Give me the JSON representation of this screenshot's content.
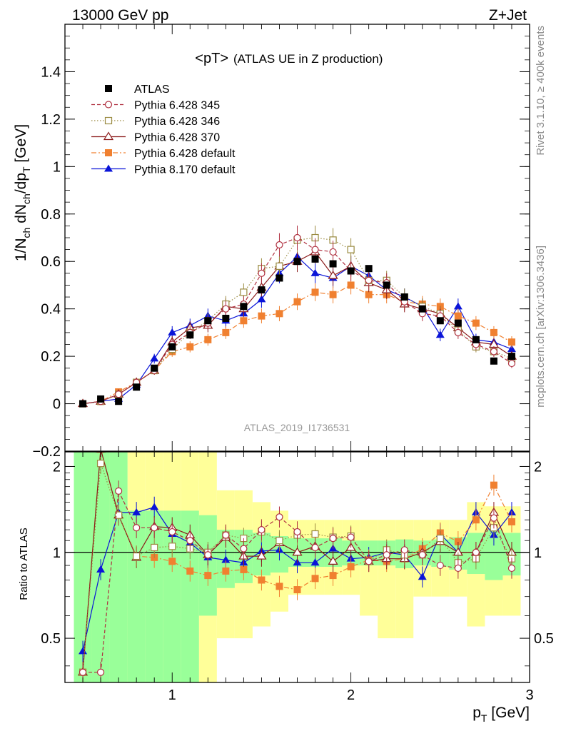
{
  "header": {
    "left": "13000 GeV pp",
    "right": "Z+Jet"
  },
  "side": {
    "rivet": "Rivet 3.1.10, ≥ 400k events",
    "mcplots": "mcplots.cern.ch [arXiv:1306.3436]"
  },
  "chart_data": [
    {
      "type": "line",
      "title": "<pT>",
      "subtitle": "(ATLAS UE in Z production)",
      "analysis_label": "ATLAS_2019_I1736531",
      "ylabel": "1/N_ch dN_ch/dp_T [GeV]",
      "xlabel": "p_T [GeV]",
      "xlim": [
        0.4,
        3.0
      ],
      "ylim": [
        -0.2,
        1.6
      ],
      "yticks": [
        -0.2,
        0,
        0.2,
        0.4,
        0.6,
        0.8,
        1,
        1.2,
        1.4
      ],
      "ytick_labels": [
        "−0.2",
        "0",
        "0.2",
        "0.4",
        "0.6",
        "0.8",
        "1",
        "1.2",
        "1.4"
      ],
      "x": [
        0.5,
        0.6,
        0.7,
        0.8,
        0.9,
        1.0,
        1.1,
        1.2,
        1.3,
        1.4,
        1.5,
        1.6,
        1.7,
        1.8,
        1.9,
        2.0,
        2.1,
        2.2,
        2.3,
        2.4,
        2.5,
        2.6,
        2.7,
        2.8,
        2.9
      ],
      "series": [
        {
          "name": "ATLAS",
          "color": "#000000",
          "marker": "square-filled",
          "values": [
            0.0,
            0.02,
            0.01,
            0.07,
            0.15,
            0.24,
            0.29,
            0.35,
            0.36,
            0.41,
            0.48,
            0.53,
            0.6,
            0.61,
            0.59,
            0.56,
            0.57,
            0.5,
            0.45,
            0.4,
            0.35,
            0.34,
            0.27,
            0.18,
            0.2
          ]
        },
        {
          "name": "Pythia 6.428 345",
          "color": "#b03040",
          "marker": "circle-open",
          "dash": "5,3",
          "values": [
            0.0,
            0.01,
            0.04,
            0.09,
            0.14,
            0.25,
            0.3,
            0.34,
            0.4,
            0.42,
            0.55,
            0.67,
            0.7,
            0.65,
            0.64,
            0.56,
            0.52,
            0.51,
            0.43,
            0.38,
            0.37,
            0.3,
            0.25,
            0.22,
            0.17
          ]
        },
        {
          "name": "Pythia 6.428 346",
          "color": "#9a8a40",
          "marker": "square-open",
          "dash": "1.5,2.5",
          "values": [
            0.0,
            0.01,
            0.04,
            0.09,
            0.14,
            0.23,
            0.3,
            0.35,
            0.42,
            0.47,
            0.57,
            0.58,
            0.69,
            0.7,
            0.69,
            0.65,
            0.52,
            0.52,
            0.45,
            0.41,
            0.38,
            0.31,
            0.24,
            0.22,
            0.19
          ]
        },
        {
          "name": "Pythia 6.428 370",
          "color": "#8b1a1a",
          "marker": "triangle-open",
          "dash": "",
          "values": [
            0.0,
            0.01,
            0.04,
            0.09,
            0.14,
            0.26,
            0.32,
            0.33,
            0.41,
            0.4,
            0.49,
            0.58,
            0.6,
            0.64,
            0.54,
            0.58,
            0.51,
            0.48,
            0.42,
            0.4,
            0.38,
            0.32,
            0.26,
            0.25,
            0.2
          ]
        },
        {
          "name": "Pythia 6.428 default",
          "color": "#f08030",
          "marker": "square-filled",
          "dash": "7,3,2,3",
          "values": [
            0.0,
            0.01,
            0.05,
            0.09,
            0.14,
            0.22,
            0.24,
            0.27,
            0.3,
            0.35,
            0.37,
            0.38,
            0.43,
            0.47,
            0.46,
            0.5,
            0.46,
            0.46,
            0.43,
            0.42,
            0.41,
            0.37,
            0.34,
            0.3,
            0.26
          ]
        },
        {
          "name": "Pythia 8.170 default",
          "color": "#0a14d8",
          "marker": "triangle-filled",
          "dash": "",
          "values": [
            0.0,
            0.01,
            0.02,
            0.08,
            0.19,
            0.3,
            0.33,
            0.37,
            0.35,
            0.38,
            0.44,
            0.55,
            0.62,
            0.55,
            0.53,
            0.58,
            0.54,
            0.48,
            0.45,
            0.41,
            0.29,
            0.41,
            0.27,
            0.26,
            0.23
          ]
        }
      ],
      "legend_position": "top-left"
    },
    {
      "type": "line",
      "ylabel": "Ratio to ATLAS",
      "xlabel": "p_T [GeV]",
      "xlim": [
        0.4,
        3.0
      ],
      "ylim": [
        0.35,
        2.25
      ],
      "xticks": [
        1,
        2,
        3
      ],
      "xtick_labels": [
        "1",
        "2",
        "3"
      ],
      "yticks": [
        0.5,
        1,
        2
      ],
      "ytick_labels": [
        "0.5",
        "1",
        "2"
      ],
      "band_colors": {
        "inner": "#99ff99",
        "outer": "#ffff99"
      },
      "band_inner": [
        [
          0.35,
          2.25
        ],
        [
          0.35,
          2.25
        ],
        [
          0.35,
          2.25
        ],
        [
          0.35,
          1.4
        ],
        [
          0.35,
          1.4
        ],
        [
          0.35,
          1.4
        ],
        [
          0.35,
          1.4
        ],
        [
          0.6,
          1.35
        ],
        [
          0.75,
          1.2
        ],
        [
          0.78,
          1.2
        ],
        [
          0.83,
          1.17
        ],
        [
          0.85,
          1.14
        ],
        [
          0.89,
          1.12
        ],
        [
          0.89,
          1.12
        ],
        [
          0.89,
          1.12
        ],
        [
          0.9,
          1.1
        ],
        [
          0.9,
          1.1
        ],
        [
          0.9,
          1.1
        ],
        [
          0.88,
          1.11
        ],
        [
          0.9,
          1.1
        ],
        [
          0.89,
          1.11
        ],
        [
          0.87,
          1.13
        ],
        [
          0.84,
          1.17
        ],
        [
          0.8,
          1.2
        ],
        [
          0.83,
          1.17
        ]
      ],
      "band_outer": [
        [
          0.35,
          2.25
        ],
        [
          0.35,
          2.25
        ],
        [
          0.35,
          2.25
        ],
        [
          0.35,
          2.25
        ],
        [
          0.35,
          2.25
        ],
        [
          0.35,
          2.25
        ],
        [
          0.35,
          2.25
        ],
        [
          0.35,
          2.25
        ],
        [
          0.5,
          1.65
        ],
        [
          0.5,
          1.65
        ],
        [
          0.55,
          1.5
        ],
        [
          0.62,
          1.4
        ],
        [
          0.71,
          1.3
        ],
        [
          0.71,
          1.3
        ],
        [
          0.71,
          1.3
        ],
        [
          0.71,
          1.3
        ],
        [
          0.6,
          1.3
        ],
        [
          0.5,
          1.3
        ],
        [
          0.5,
          1.3
        ],
        [
          0.7,
          1.3
        ],
        [
          0.7,
          1.3
        ],
        [
          0.7,
          1.3
        ],
        [
          0.55,
          1.5
        ],
        [
          0.6,
          1.45
        ],
        [
          0.6,
          1.45
        ]
      ],
      "series": [
        {
          "name": "Pythia 6.428 345",
          "values": [
            0.38,
            0.38,
            1.64,
            1.22,
            1.22,
            1.18,
            1.1,
            0.98,
            1.15,
            1.03,
            1.2,
            1.33,
            1.18,
            1.04,
            1.12,
            1.13,
            0.93,
            0.98,
            1.02,
            0.98,
            0.9,
            0.88,
            1.0,
            1.32,
            0.88
          ]
        },
        {
          "name": "Pythia 6.428 346",
          "values": [
            0.38,
            2.05,
            1.35,
            0.97,
            1.04,
            1.05,
            1.03,
            1.0,
            1.15,
            1.12,
            1.18,
            1.1,
            1.15,
            1.16,
            1.13,
            1.14,
            0.93,
            1.02,
            0.98,
            0.98,
            1.12,
            0.92,
            0.95,
            1.22,
            0.95
          ]
        },
        {
          "name": "Pythia 6.428 370",
          "values": [
            0.38,
            2.3,
            1.35,
            0.96,
            1.23,
            1.22,
            1.15,
            0.98,
            1.13,
            0.97,
            0.97,
            1.08,
            1.0,
            1.05,
            0.93,
            1.04,
            0.93,
            0.95,
            0.95,
            1.0,
            1.09,
            1.0,
            1.0,
            1.38,
            1.0
          ]
        },
        {
          "name": "Pythia 6.428 default",
          "values": [
            0.38,
            2.3,
            1.35,
            0.97,
            0.96,
            0.93,
            0.86,
            0.83,
            0.86,
            0.87,
            0.8,
            0.76,
            0.74,
            0.81,
            0.83,
            0.89,
            0.94,
            0.93,
            0.95,
            1.03,
            1.17,
            1.09,
            1.3,
            1.72,
            1.28
          ]
        },
        {
          "name": "Pythia 8.170 default",
          "values": [
            0.45,
            0.87,
            1.38,
            1.38,
            1.44,
            1.16,
            1.08,
            0.96,
            0.94,
            0.92,
            1.01,
            1.02,
            0.92,
            0.92,
            1.03,
            0.95,
            0.96,
            1.0,
            0.98,
            0.82,
            1.16,
            1.0,
            1.38,
            1.15,
            1.38
          ]
        }
      ]
    }
  ]
}
